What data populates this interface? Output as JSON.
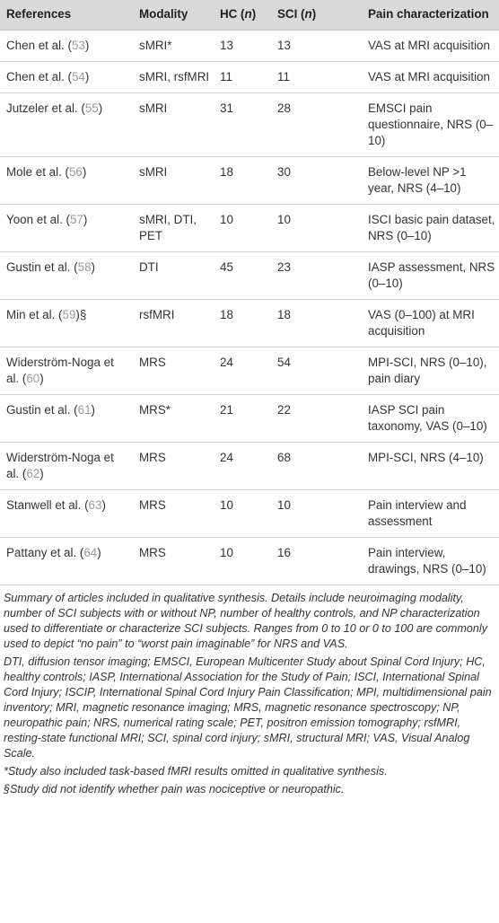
{
  "table": {
    "headers": {
      "references": "References",
      "modality": "Modality",
      "hc": "HC (",
      "hc_n": "n",
      "hc_close": ")",
      "sci": "SCI (",
      "sci_n": "n",
      "sci_close": ")",
      "pain": "Pain characterization"
    },
    "rows": [
      {
        "author": "Chen et al. (",
        "ref": "53",
        "ref_close": ")",
        "modality": "sMRI*",
        "hc": "13",
        "sci": "13",
        "pain": "VAS at MRI acquisition"
      },
      {
        "author": "Chen et al. (",
        "ref": "54",
        "ref_close": ")",
        "modality": "sMRI, rsfMRI",
        "hc": "11",
        "sci": "11",
        "pain": "VAS at MRI acquisition"
      },
      {
        "author": "Jutzeler et al. (",
        "ref": "55",
        "ref_close": ")",
        "modality": "sMRI",
        "hc": "31",
        "sci": "28",
        "pain": "EMSCI pain questionnaire, NRS (0–10)"
      },
      {
        "author": "Mole et al. (",
        "ref": "56",
        "ref_close": ")",
        "modality": "sMRI",
        "hc": "18",
        "sci": "30",
        "pain": "Below-level NP >1 year, NRS (4–10)"
      },
      {
        "author": "Yoon et al. (",
        "ref": "57",
        "ref_close": ")",
        "modality": "sMRI, DTI, PET",
        "hc": "10",
        "sci": "10",
        "pain": "ISCI basic pain dataset, NRS (0–10)"
      },
      {
        "author": "Gustin et al. (",
        "ref": "58",
        "ref_close": ")",
        "modality": "DTI",
        "hc": "45",
        "sci": "23",
        "pain": "IASP assessment, NRS (0–10)"
      },
      {
        "author": "Min et al. (",
        "ref": "59",
        "ref_close": ")§",
        "modality": "rsfMRI",
        "hc": "18",
        "sci": "18",
        "pain": "VAS (0–100) at MRI acquisition"
      },
      {
        "author": "Widerström-Noga et al. (",
        "ref": "60",
        "ref_close": ")",
        "modality": "MRS",
        "hc": "24",
        "sci": "54",
        "pain": "MPI-SCI, NRS (0–10), pain diary"
      },
      {
        "author": "Gustin et al. (",
        "ref": "61",
        "ref_close": ")",
        "modality": "MRS*",
        "hc": "21",
        "sci": "22",
        "pain": "IASP SCI pain taxonomy, VAS (0–10)"
      },
      {
        "author": "Widerström-Noga et al. (",
        "ref": "62",
        "ref_close": ")",
        "modality": "MRS",
        "hc": "24",
        "sci": "68",
        "pain": "MPI-SCI, NRS (4–10)"
      },
      {
        "author": "Stanwell et al. (",
        "ref": "63",
        "ref_close": ")",
        "modality": "MRS",
        "hc": "10",
        "sci": "10",
        "pain": "Pain interview and assessment"
      },
      {
        "author": "Pattany et al. (",
        "ref": "64",
        "ref_close": ")",
        "modality": "MRS",
        "hc": "10",
        "sci": "16",
        "pain": "Pain interview, drawings, NRS (0–10)"
      }
    ]
  },
  "notes": {
    "summary": "Summary of articles included in qualitative synthesis. Details include neuroimaging modality, number of SCI subjects with or without NP, number of healthy controls, and NP characterization used to differentiate or characterize SCI subjects. Ranges from 0 to 10 or 0 to 100 are commonly used to depict “no pain” to “worst pain imaginable” for NRS and VAS.",
    "abbreviations": "DTI, diffusion tensor imaging; EMSCI, European Multicenter Study about Spinal Cord Injury; HC, healthy controls; IASP, International Association for the Study of Pain; ISCI, International Spinal Cord Injury; ISCIP, International Spinal Cord Injury Pain Classification; MPI, multidimensional pain inventory; MRI, magnetic resonance imaging; MRS, magnetic resonance spectroscopy; NP, neuropathic pain; NRS, numerical rating scale; PET, positron emission tomography; rsfMRI, resting-state functional MRI; SCI, spinal cord injury; sMRI, structural MRI; VAS, Visual Analog Scale.",
    "footnote_star": "*Study also included task-based fMRI results omitted in qualitative synthesis.",
    "footnote_section": "§Study did not identify whether pain was nociceptive or neuropathic."
  }
}
